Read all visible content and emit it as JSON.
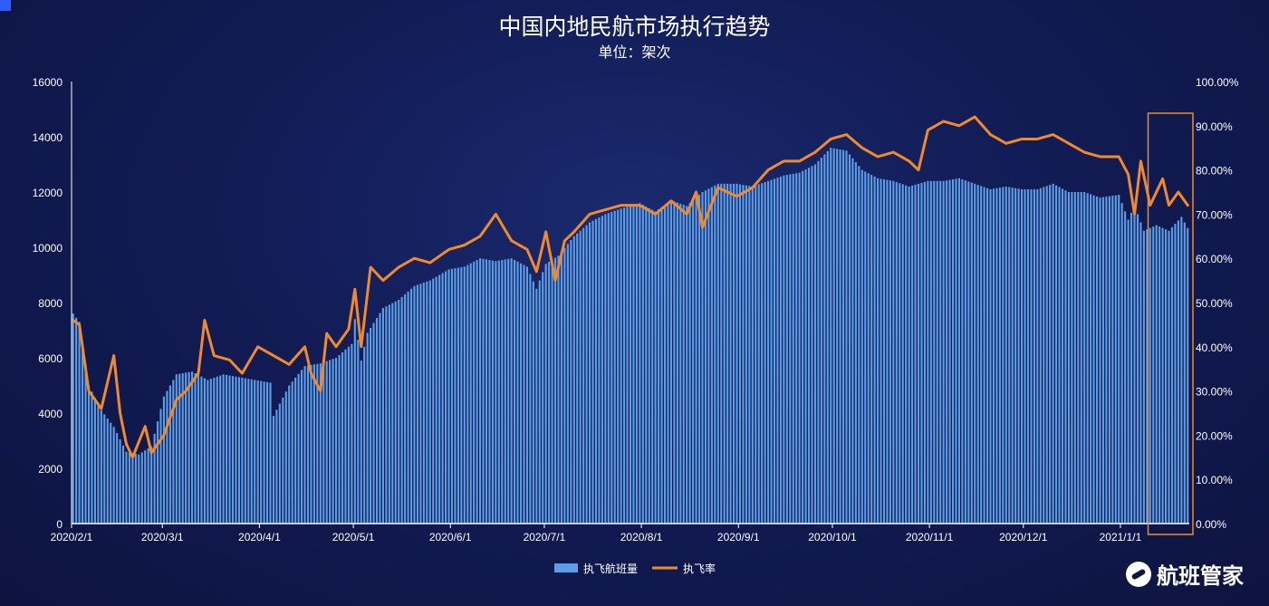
{
  "title": "中国内地民航市场执行趋势",
  "subtitle": "单位：架次",
  "logo_text": "航班管家",
  "chart_data": {
    "type": "bar",
    "x_ticks": [
      "2020/2/1",
      "2020/3/1",
      "2020/4/1",
      "2020/5/1",
      "2020/6/1",
      "2020/7/1",
      "2020/8/1",
      "2020/9/1",
      "2020/10/1",
      "2020/11/1",
      "2020/12/1",
      "2021/1/1"
    ],
    "y_left": {
      "ticks": [
        "0",
        "2000",
        "4000",
        "6000",
        "8000",
        "10000",
        "12000",
        "14000",
        "16000"
      ],
      "ylim": [
        0,
        16000
      ]
    },
    "y_right": {
      "ticks": [
        "0.00%",
        "10.00%",
        "20.00%",
        "30.00%",
        "40.00%",
        "50.00%",
        "60.00%",
        "70.00%",
        "80.00%",
        "90.00%",
        "100.00%"
      ],
      "ylim": [
        0,
        100
      ]
    },
    "legend": {
      "placement": "bottom-center"
    },
    "series": [
      {
        "name": "执飞航班量",
        "type": "bar",
        "color": "#5b9ee8",
        "anchors": [
          [
            "2020-02-01",
            7600
          ],
          [
            "2020-02-03",
            7300
          ],
          [
            "2020-02-06",
            5000
          ],
          [
            "2020-02-10",
            4100
          ],
          [
            "2020-02-14",
            3500
          ],
          [
            "2020-02-18",
            2600
          ],
          [
            "2020-02-22",
            2500
          ],
          [
            "2020-02-26",
            2800
          ],
          [
            "2020-03-01",
            4600
          ],
          [
            "2020-03-05",
            5400
          ],
          [
            "2020-03-10",
            5500
          ],
          [
            "2020-03-15",
            5200
          ],
          [
            "2020-03-20",
            5400
          ],
          [
            "2020-03-25",
            5300
          ],
          [
            "2020-03-30",
            5200
          ],
          [
            "2020-04-04",
            5100
          ],
          [
            "2020-04-05",
            3900
          ],
          [
            "2020-04-10",
            5000
          ],
          [
            "2020-04-15",
            5700
          ],
          [
            "2020-04-20",
            5800
          ],
          [
            "2020-04-25",
            6000
          ],
          [
            "2020-04-30",
            6500
          ],
          [
            "2020-05-01",
            7400
          ],
          [
            "2020-05-03",
            5900
          ],
          [
            "2020-05-05",
            6900
          ],
          [
            "2020-05-10",
            7800
          ],
          [
            "2020-05-15",
            8100
          ],
          [
            "2020-05-20",
            8600
          ],
          [
            "2020-05-25",
            8800
          ],
          [
            "2020-05-31",
            9200
          ],
          [
            "2020-06-05",
            9300
          ],
          [
            "2020-06-10",
            9600
          ],
          [
            "2020-06-15",
            9500
          ],
          [
            "2020-06-20",
            9600
          ],
          [
            "2020-06-25",
            9300
          ],
          [
            "2020-06-28",
            8500
          ],
          [
            "2020-07-01",
            9400
          ],
          [
            "2020-07-05",
            9700
          ],
          [
            "2020-07-10",
            10400
          ],
          [
            "2020-07-15",
            10900
          ],
          [
            "2020-07-20",
            11200
          ],
          [
            "2020-07-25",
            11400
          ],
          [
            "2020-07-31",
            11600
          ],
          [
            "2020-08-05",
            11300
          ],
          [
            "2020-08-10",
            11700
          ],
          [
            "2020-08-15",
            11500
          ],
          [
            "2020-08-20",
            12000
          ],
          [
            "2020-08-25",
            12300
          ],
          [
            "2020-08-31",
            12300
          ],
          [
            "2020-09-05",
            12200
          ],
          [
            "2020-09-10",
            12400
          ],
          [
            "2020-09-15",
            12600
          ],
          [
            "2020-09-20",
            12700
          ],
          [
            "2020-09-25",
            13000
          ],
          [
            "2020-09-30",
            13600
          ],
          [
            "2020-10-05",
            13500
          ],
          [
            "2020-10-10",
            12800
          ],
          [
            "2020-10-15",
            12500
          ],
          [
            "2020-10-20",
            12400
          ],
          [
            "2020-10-25",
            12200
          ],
          [
            "2020-10-31",
            12400
          ],
          [
            "2020-11-05",
            12400
          ],
          [
            "2020-11-10",
            12500
          ],
          [
            "2020-11-15",
            12300
          ],
          [
            "2020-11-20",
            12100
          ],
          [
            "2020-11-25",
            12200
          ],
          [
            "2020-11-30",
            12100
          ],
          [
            "2020-12-05",
            12100
          ],
          [
            "2020-12-10",
            12300
          ],
          [
            "2020-12-15",
            12000
          ],
          [
            "2020-12-20",
            12000
          ],
          [
            "2020-12-25",
            11800
          ],
          [
            "2020-12-31",
            11900
          ],
          [
            "2021-01-03",
            11000
          ],
          [
            "2021-01-05",
            11500
          ],
          [
            "2021-01-08",
            10600
          ],
          [
            "2021-01-12",
            10800
          ],
          [
            "2021-01-16",
            10600
          ],
          [
            "2021-01-20",
            11100
          ],
          [
            "2021-01-22",
            10700
          ]
        ]
      },
      {
        "name": "执飞率",
        "type": "line",
        "color": "#f08a2c",
        "anchors": [
          [
            "2020-02-01",
            46
          ],
          [
            "2020-02-03",
            45
          ],
          [
            "2020-02-06",
            30
          ],
          [
            "2020-02-10",
            26
          ],
          [
            "2020-02-14",
            38
          ],
          [
            "2020-02-16",
            25
          ],
          [
            "2020-02-18",
            18
          ],
          [
            "2020-02-20",
            15
          ],
          [
            "2020-02-24",
            22
          ],
          [
            "2020-02-26",
            16
          ],
          [
            "2020-03-01",
            20
          ],
          [
            "2020-03-05",
            28
          ],
          [
            "2020-03-08",
            30
          ],
          [
            "2020-03-12",
            34
          ],
          [
            "2020-03-14",
            46
          ],
          [
            "2020-03-17",
            38
          ],
          [
            "2020-03-22",
            37
          ],
          [
            "2020-03-26",
            34
          ],
          [
            "2020-03-31",
            40
          ],
          [
            "2020-04-05",
            38
          ],
          [
            "2020-04-10",
            36
          ],
          [
            "2020-04-15",
            40
          ],
          [
            "2020-04-17",
            34
          ],
          [
            "2020-04-20",
            30
          ],
          [
            "2020-04-22",
            43
          ],
          [
            "2020-04-25",
            40
          ],
          [
            "2020-04-29",
            44
          ],
          [
            "2020-05-01",
            53
          ],
          [
            "2020-05-03",
            40
          ],
          [
            "2020-05-06",
            58
          ],
          [
            "2020-05-10",
            55
          ],
          [
            "2020-05-15",
            58
          ],
          [
            "2020-05-20",
            60
          ],
          [
            "2020-05-25",
            59
          ],
          [
            "2020-05-31",
            62
          ],
          [
            "2020-06-05",
            63
          ],
          [
            "2020-06-10",
            65
          ],
          [
            "2020-06-15",
            70
          ],
          [
            "2020-06-20",
            64
          ],
          [
            "2020-06-25",
            62
          ],
          [
            "2020-06-28",
            57
          ],
          [
            "2020-07-01",
            66
          ],
          [
            "2020-07-04",
            55
          ],
          [
            "2020-07-07",
            64
          ],
          [
            "2020-07-10",
            66
          ],
          [
            "2020-07-15",
            70
          ],
          [
            "2020-07-20",
            71
          ],
          [
            "2020-07-25",
            72
          ],
          [
            "2020-07-31",
            72
          ],
          [
            "2020-08-05",
            70
          ],
          [
            "2020-08-10",
            73
          ],
          [
            "2020-08-15",
            70
          ],
          [
            "2020-08-18",
            75
          ],
          [
            "2020-08-20",
            67
          ],
          [
            "2020-08-25",
            76
          ],
          [
            "2020-08-31",
            74
          ],
          [
            "2020-09-05",
            76
          ],
          [
            "2020-09-10",
            80
          ],
          [
            "2020-09-15",
            82
          ],
          [
            "2020-09-20",
            82
          ],
          [
            "2020-09-25",
            84
          ],
          [
            "2020-09-30",
            87
          ],
          [
            "2020-10-05",
            88
          ],
          [
            "2020-10-10",
            85
          ],
          [
            "2020-10-15",
            83
          ],
          [
            "2020-10-20",
            84
          ],
          [
            "2020-10-25",
            82
          ],
          [
            "2020-10-28",
            80
          ],
          [
            "2020-10-31",
            89
          ],
          [
            "2020-11-05",
            91
          ],
          [
            "2020-11-10",
            90
          ],
          [
            "2020-11-15",
            92
          ],
          [
            "2020-11-20",
            88
          ],
          [
            "2020-11-25",
            86
          ],
          [
            "2020-11-30",
            87
          ],
          [
            "2020-12-05",
            87
          ],
          [
            "2020-12-10",
            88
          ],
          [
            "2020-12-15",
            86
          ],
          [
            "2020-12-20",
            84
          ],
          [
            "2020-12-25",
            83
          ],
          [
            "2020-12-31",
            83
          ],
          [
            "2021-01-03",
            79
          ],
          [
            "2021-01-05",
            70
          ],
          [
            "2021-01-07",
            82
          ],
          [
            "2021-01-10",
            72
          ],
          [
            "2021-01-14",
            78
          ],
          [
            "2021-01-16",
            72
          ],
          [
            "2021-01-19",
            75
          ],
          [
            "2021-01-22",
            72
          ]
        ]
      }
    ]
  },
  "highlight_box": {
    "color": "#f08a2c",
    "from_date": "2021-01-11",
    "to_date": "2021-01-22"
  }
}
